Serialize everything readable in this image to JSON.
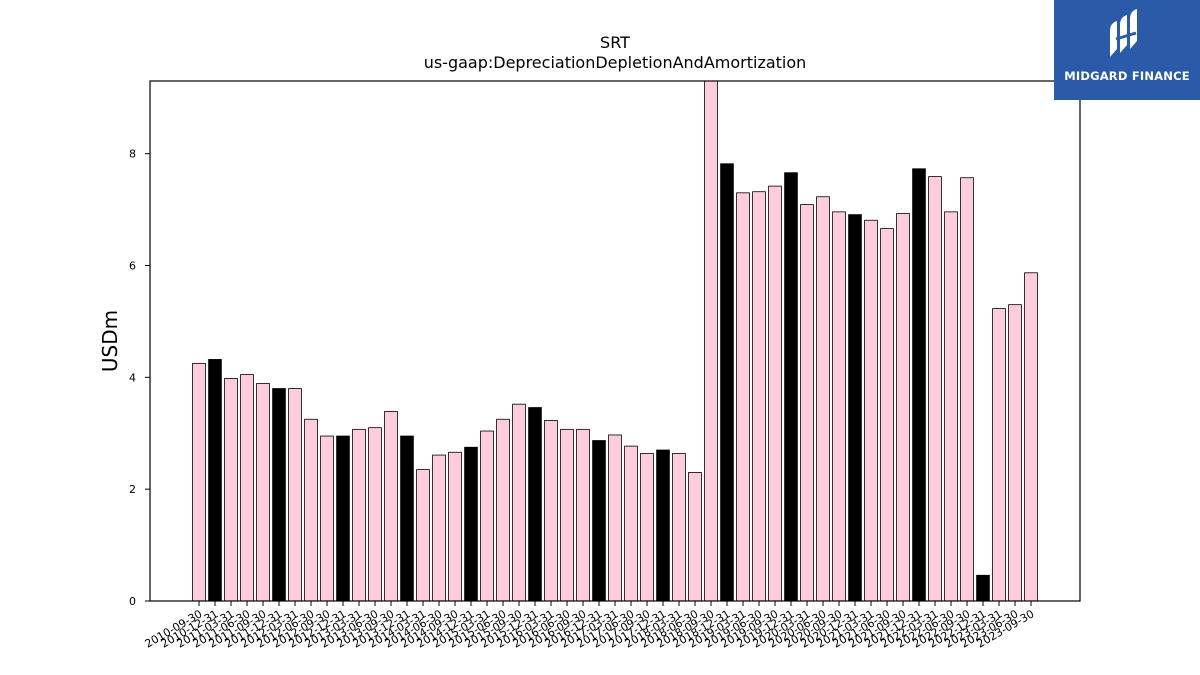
{
  "brand": {
    "name": "MIDGARD FINANCE",
    "bg_color": "#2a5aa8",
    "mark_icon": "midgard-logo-mark-icon"
  },
  "chart_data": {
    "type": "bar",
    "title": "SRT",
    "subtitle": "us-gaap:DepreciationDepletionAndAmortization",
    "ylabel": "USDm",
    "xlabel": "",
    "ylim": [
      0,
      9.3
    ],
    "yticks": [
      0,
      2,
      4,
      6,
      8
    ],
    "grid": false,
    "colors": {
      "default": "#ffccdd",
      "highlight": "#000000",
      "edge": "#000000"
    },
    "categories": [
      "2010-09-30",
      "2010-12-31",
      "2011-03-31",
      "2011-06-30",
      "2011-09-30",
      "2011-12-31",
      "2012-03-31",
      "2012-06-30",
      "2012-09-30",
      "2012-12-31",
      "2013-03-31",
      "2013-06-30",
      "2013-09-30",
      "2013-12-31",
      "2014-03-31",
      "2014-06-30",
      "2014-09-30",
      "2014-12-31",
      "2015-03-31",
      "2015-06-30",
      "2015-09-30",
      "2015-12-31",
      "2016-03-31",
      "2016-06-30",
      "2016-09-30",
      "2016-12-31",
      "2017-03-31",
      "2017-06-30",
      "2017-09-30",
      "2017-12-31",
      "2018-03-31",
      "2018-06-30",
      "2018-09-30",
      "2018-12-31",
      "2019-03-31",
      "2019-06-30",
      "2019-09-30",
      "2019-12-31",
      "2020-03-31",
      "2020-06-30",
      "2020-09-30",
      "2020-12-31",
      "2021-03-31",
      "2021-06-30",
      "2021-09-30",
      "2021-12-31",
      "2022-03-31",
      "2022-06-30",
      "2022-09-30",
      "2022-12-31",
      "2023-03-31",
      "2023-06-30",
      "2023-09-30"
    ],
    "values": [
      4.25,
      4.32,
      3.98,
      4.05,
      3.89,
      3.8,
      3.8,
      3.25,
      2.95,
      2.95,
      3.07,
      3.1,
      3.39,
      2.95,
      2.35,
      2.61,
      2.66,
      2.75,
      3.04,
      3.25,
      3.52,
      3.46,
      3.23,
      3.07,
      3.07,
      2.87,
      2.97,
      2.77,
      2.64,
      2.7,
      2.64,
      2.3,
      9.3,
      7.82,
      7.3,
      7.32,
      7.42,
      7.66,
      7.09,
      7.23,
      6.96,
      6.91,
      6.81,
      6.66,
      6.93,
      7.73,
      7.59,
      6.96,
      7.57,
      0.46,
      5.23,
      5.3,
      5.87
    ],
    "highlight": [
      false,
      true,
      false,
      false,
      false,
      true,
      false,
      false,
      false,
      true,
      false,
      false,
      false,
      true,
      false,
      false,
      false,
      true,
      false,
      false,
      false,
      true,
      false,
      false,
      false,
      true,
      false,
      false,
      false,
      true,
      false,
      false,
      false,
      true,
      false,
      false,
      false,
      true,
      false,
      false,
      false,
      true,
      false,
      false,
      false,
      true,
      false,
      false,
      false,
      true,
      false,
      false,
      false
    ]
  }
}
